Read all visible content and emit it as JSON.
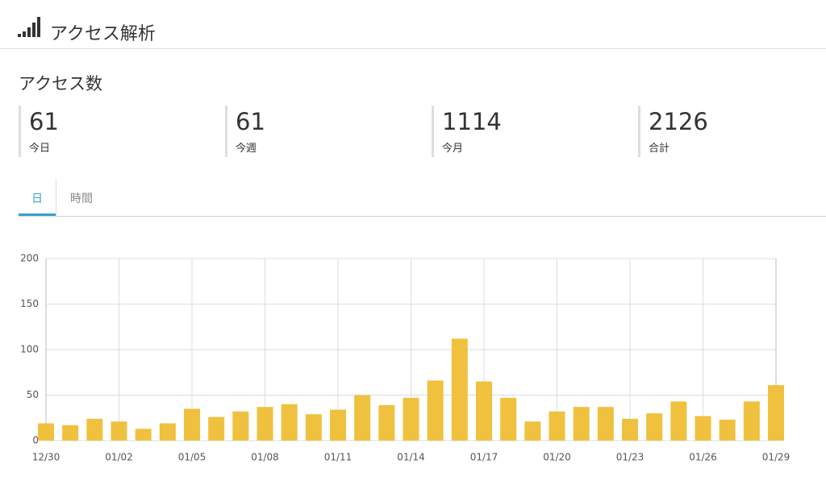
{
  "header": {
    "title": "アクセス解析"
  },
  "section_title": "アクセス数",
  "stats": [
    {
      "value": 61,
      "label": "今日"
    },
    {
      "value": 61,
      "label": "今週"
    },
    {
      "value": 1114,
      "label": "今月"
    },
    {
      "value": 2126,
      "label": "合計"
    }
  ],
  "tabs": [
    "日",
    "時間"
  ],
  "chart_data": {
    "type": "bar",
    "categories": [
      "12/30",
      null,
      null,
      "01/02",
      null,
      null,
      "01/05",
      null,
      null,
      "01/08",
      null,
      null,
      "01/11",
      null,
      null,
      "01/14",
      null,
      null,
      "01/17",
      null,
      null,
      "01/20",
      null,
      null,
      "01/23",
      null,
      null,
      "01/26",
      null,
      null,
      "01/29"
    ],
    "values": [
      19,
      17,
      24,
      21,
      13,
      19,
      35,
      26,
      32,
      37,
      40,
      29,
      34,
      50,
      39,
      47,
      66,
      112,
      65,
      47,
      21,
      32,
      37,
      37,
      24,
      30,
      43,
      27,
      23,
      43,
      61
    ],
    "color": "#efc13f",
    "ylim": [
      0,
      200
    ],
    "yticks": [
      0,
      50,
      100,
      150,
      200
    ],
    "grid": true
  }
}
